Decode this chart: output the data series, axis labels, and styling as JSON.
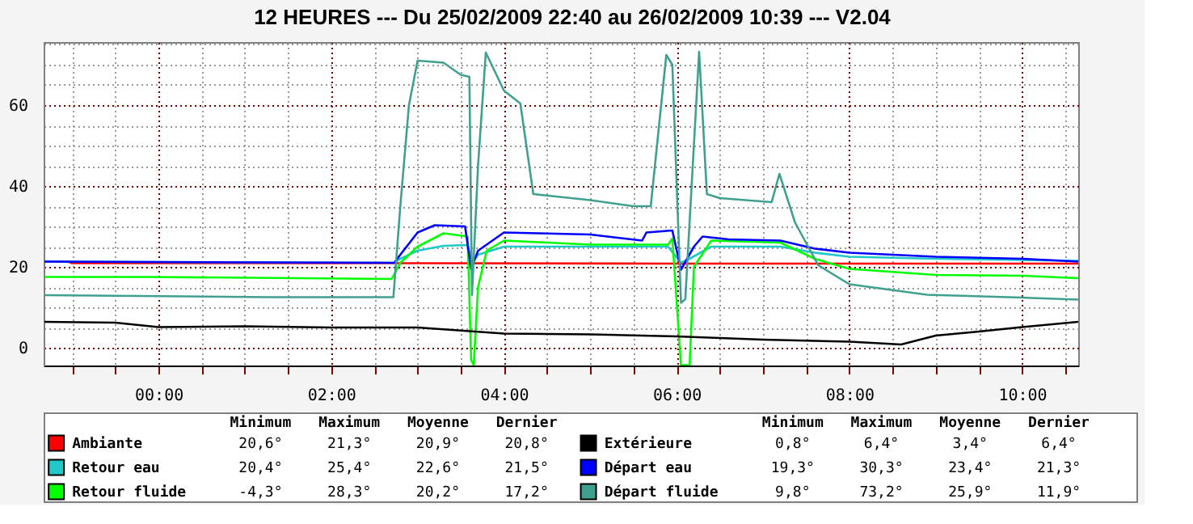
{
  "chart_data": {
    "type": "line",
    "title": "12 HEURES --- Du 25/02/2009 22:40 au 26/02/2009 10:39 --- V2.04",
    "xlim": [
      -1.33,
      10.65
    ],
    "ylim": [
      -4.4,
      75.6
    ],
    "xticks": [
      {
        "value": -1,
        "label": null
      },
      {
        "value": -0.5,
        "label": null
      },
      {
        "value": 0,
        "label": "00:00"
      },
      {
        "value": 0.5,
        "label": null
      },
      {
        "value": 1,
        "label": null
      },
      {
        "value": 1.5,
        "label": null
      },
      {
        "value": 2,
        "label": "02:00"
      },
      {
        "value": 2.5,
        "label": null
      },
      {
        "value": 3,
        "label": null
      },
      {
        "value": 3.5,
        "label": null
      },
      {
        "value": 4,
        "label": "04:00"
      },
      {
        "value": 4.5,
        "label": null
      },
      {
        "value": 5,
        "label": null
      },
      {
        "value": 5.5,
        "label": null
      },
      {
        "value": 6,
        "label": "06:00"
      },
      {
        "value": 6.5,
        "label": null
      },
      {
        "value": 7,
        "label": null
      },
      {
        "value": 7.5,
        "label": null
      },
      {
        "value": 8,
        "label": "08:00"
      },
      {
        "value": 8.5,
        "label": null
      },
      {
        "value": 9,
        "label": null
      },
      {
        "value": 9.5,
        "label": null
      },
      {
        "value": 10,
        "label": "10:00"
      },
      {
        "value": 10.5,
        "label": null
      }
    ],
    "yticks": [
      0,
      {
        "value": 5,
        "label": null
      },
      {
        "value": 10,
        "label": null
      },
      {
        "value": 15,
        "label": null
      },
      20,
      {
        "value": 25,
        "label": null
      },
      {
        "value": 30,
        "label": null
      },
      {
        "value": 35,
        "label": null
      },
      40,
      {
        "value": 45,
        "label": null
      },
      {
        "value": 50,
        "label": null
      },
      {
        "value": 55,
        "label": null
      },
      60,
      {
        "value": 65,
        "label": null
      },
      {
        "value": 70,
        "label": null
      },
      {
        "value": 75,
        "label": null
      }
    ],
    "grid": true,
    "legend": "bottom",
    "annotations": [
      "Minimum",
      "Maximum",
      "Moyenne",
      "Dernier",
      "20,6°",
      "21,3°",
      "20,9°",
      "20,8°",
      "20,4°",
      "25,4°",
      "22,6°",
      "21,5°",
      "-4,3°",
      "28,3°",
      "20,2°",
      "17,2°",
      "0,8°",
      "6,4°",
      "3,4°",
      "6,4°",
      "19,3°",
      "30,3°",
      "23,4°",
      "21,3°",
      "9,8°",
      "73,2°",
      "25,9°",
      "11,9°"
    ],
    "series": [
      {
        "name": "Ambiante",
        "color": "#ff0000",
        "x": [
          -1.32,
          -1.05,
          -1.0,
          3.0,
          6.0,
          8.0,
          10.65
        ],
        "values": [
          21.3,
          21.3,
          20.9,
          20.9,
          20.8,
          20.8,
          20.8
        ]
      },
      {
        "name": "Retour eau",
        "color": "#20c8c8",
        "x": [
          -1.32,
          2.73,
          2.8,
          3.0,
          3.3,
          3.58,
          3.63,
          3.7,
          4.0,
          5.9,
          6.05,
          6.15,
          6.4,
          7.2,
          7.6,
          8.0,
          9.0,
          10.0,
          10.65
        ],
        "values": [
          21.3,
          21.0,
          22,
          24,
          25.2,
          25.4,
          21.0,
          23,
          25,
          25,
          21,
          22,
          25,
          25,
          23.5,
          22.5,
          22,
          21.7,
          21.5
        ]
      },
      {
        "name": "Retour fluide",
        "color": "#00ff00",
        "x": [
          -1.32,
          -0.1,
          2.7,
          2.8,
          3.0,
          3.3,
          3.58,
          3.62,
          3.65,
          3.7,
          3.8,
          4.0,
          5.0,
          5.9,
          5.95,
          6.05,
          6.15,
          6.2,
          6.4,
          7.2,
          7.6,
          8.0,
          9.0,
          10.0,
          10.65
        ],
        "values": [
          17.5,
          17.5,
          17.0,
          21,
          25,
          28.3,
          27.5,
          -3,
          -4.3,
          15,
          24,
          26.5,
          25.5,
          25.5,
          27,
          -4.3,
          -4.3,
          20,
          26.5,
          26,
          22,
          19.5,
          18,
          17.8,
          17.2
        ]
      },
      {
        "name": "Extérieure",
        "color": "#000000",
        "x": [
          -1.32,
          -0.5,
          0,
          1,
          2,
          3,
          4,
          5,
          6,
          7,
          8,
          8.6,
          9,
          9.5,
          10,
          10.65
        ],
        "values": [
          6.4,
          6.2,
          5.1,
          5.3,
          5.0,
          5.0,
          3.5,
          3.3,
          2.8,
          2.0,
          1.5,
          0.8,
          3.0,
          4.0,
          5.1,
          6.4
        ]
      },
      {
        "name": "Départ eau",
        "color": "#0000ff",
        "x": [
          -1.32,
          2.73,
          2.8,
          3.0,
          3.2,
          3.55,
          3.62,
          3.7,
          4.0,
          5.0,
          5.6,
          5.65,
          5.95,
          6.05,
          6.2,
          6.3,
          6.6,
          7.2,
          7.6,
          8.0,
          9.0,
          10.0,
          10.65
        ],
        "values": [
          21.3,
          21.0,
          23.0,
          28.5,
          30.3,
          30,
          19.5,
          24,
          28.5,
          28.0,
          26.5,
          28.5,
          29,
          19.3,
          25,
          27.5,
          26.8,
          26.5,
          24.5,
          23.5,
          22.5,
          22,
          21.3
        ]
      },
      {
        "name": "Départ fluide",
        "color": "#40a090",
        "x": [
          -1.32,
          1.3,
          2.72,
          2.8,
          2.9,
          3.0,
          3.3,
          3.5,
          3.6,
          3.63,
          3.7,
          3.79,
          4.0,
          4.19,
          4.34,
          5.0,
          5.5,
          5.7,
          5.88,
          5.95,
          6.05,
          6.1,
          6.26,
          6.35,
          6.5,
          7.1,
          7.19,
          7.37,
          7.64,
          8.0,
          8.9,
          10.0,
          10.65
        ],
        "values": [
          13,
          12.5,
          12.5,
          35,
          60,
          71,
          70.5,
          67.5,
          67,
          13,
          45,
          73,
          63.6,
          60.4,
          38,
          36.5,
          35,
          35,
          72.4,
          70,
          11.1,
          12,
          73.2,
          38,
          37,
          36,
          43,
          31,
          20.4,
          15.7,
          13.1,
          12.4,
          11.9
        ]
      }
    ]
  }
}
